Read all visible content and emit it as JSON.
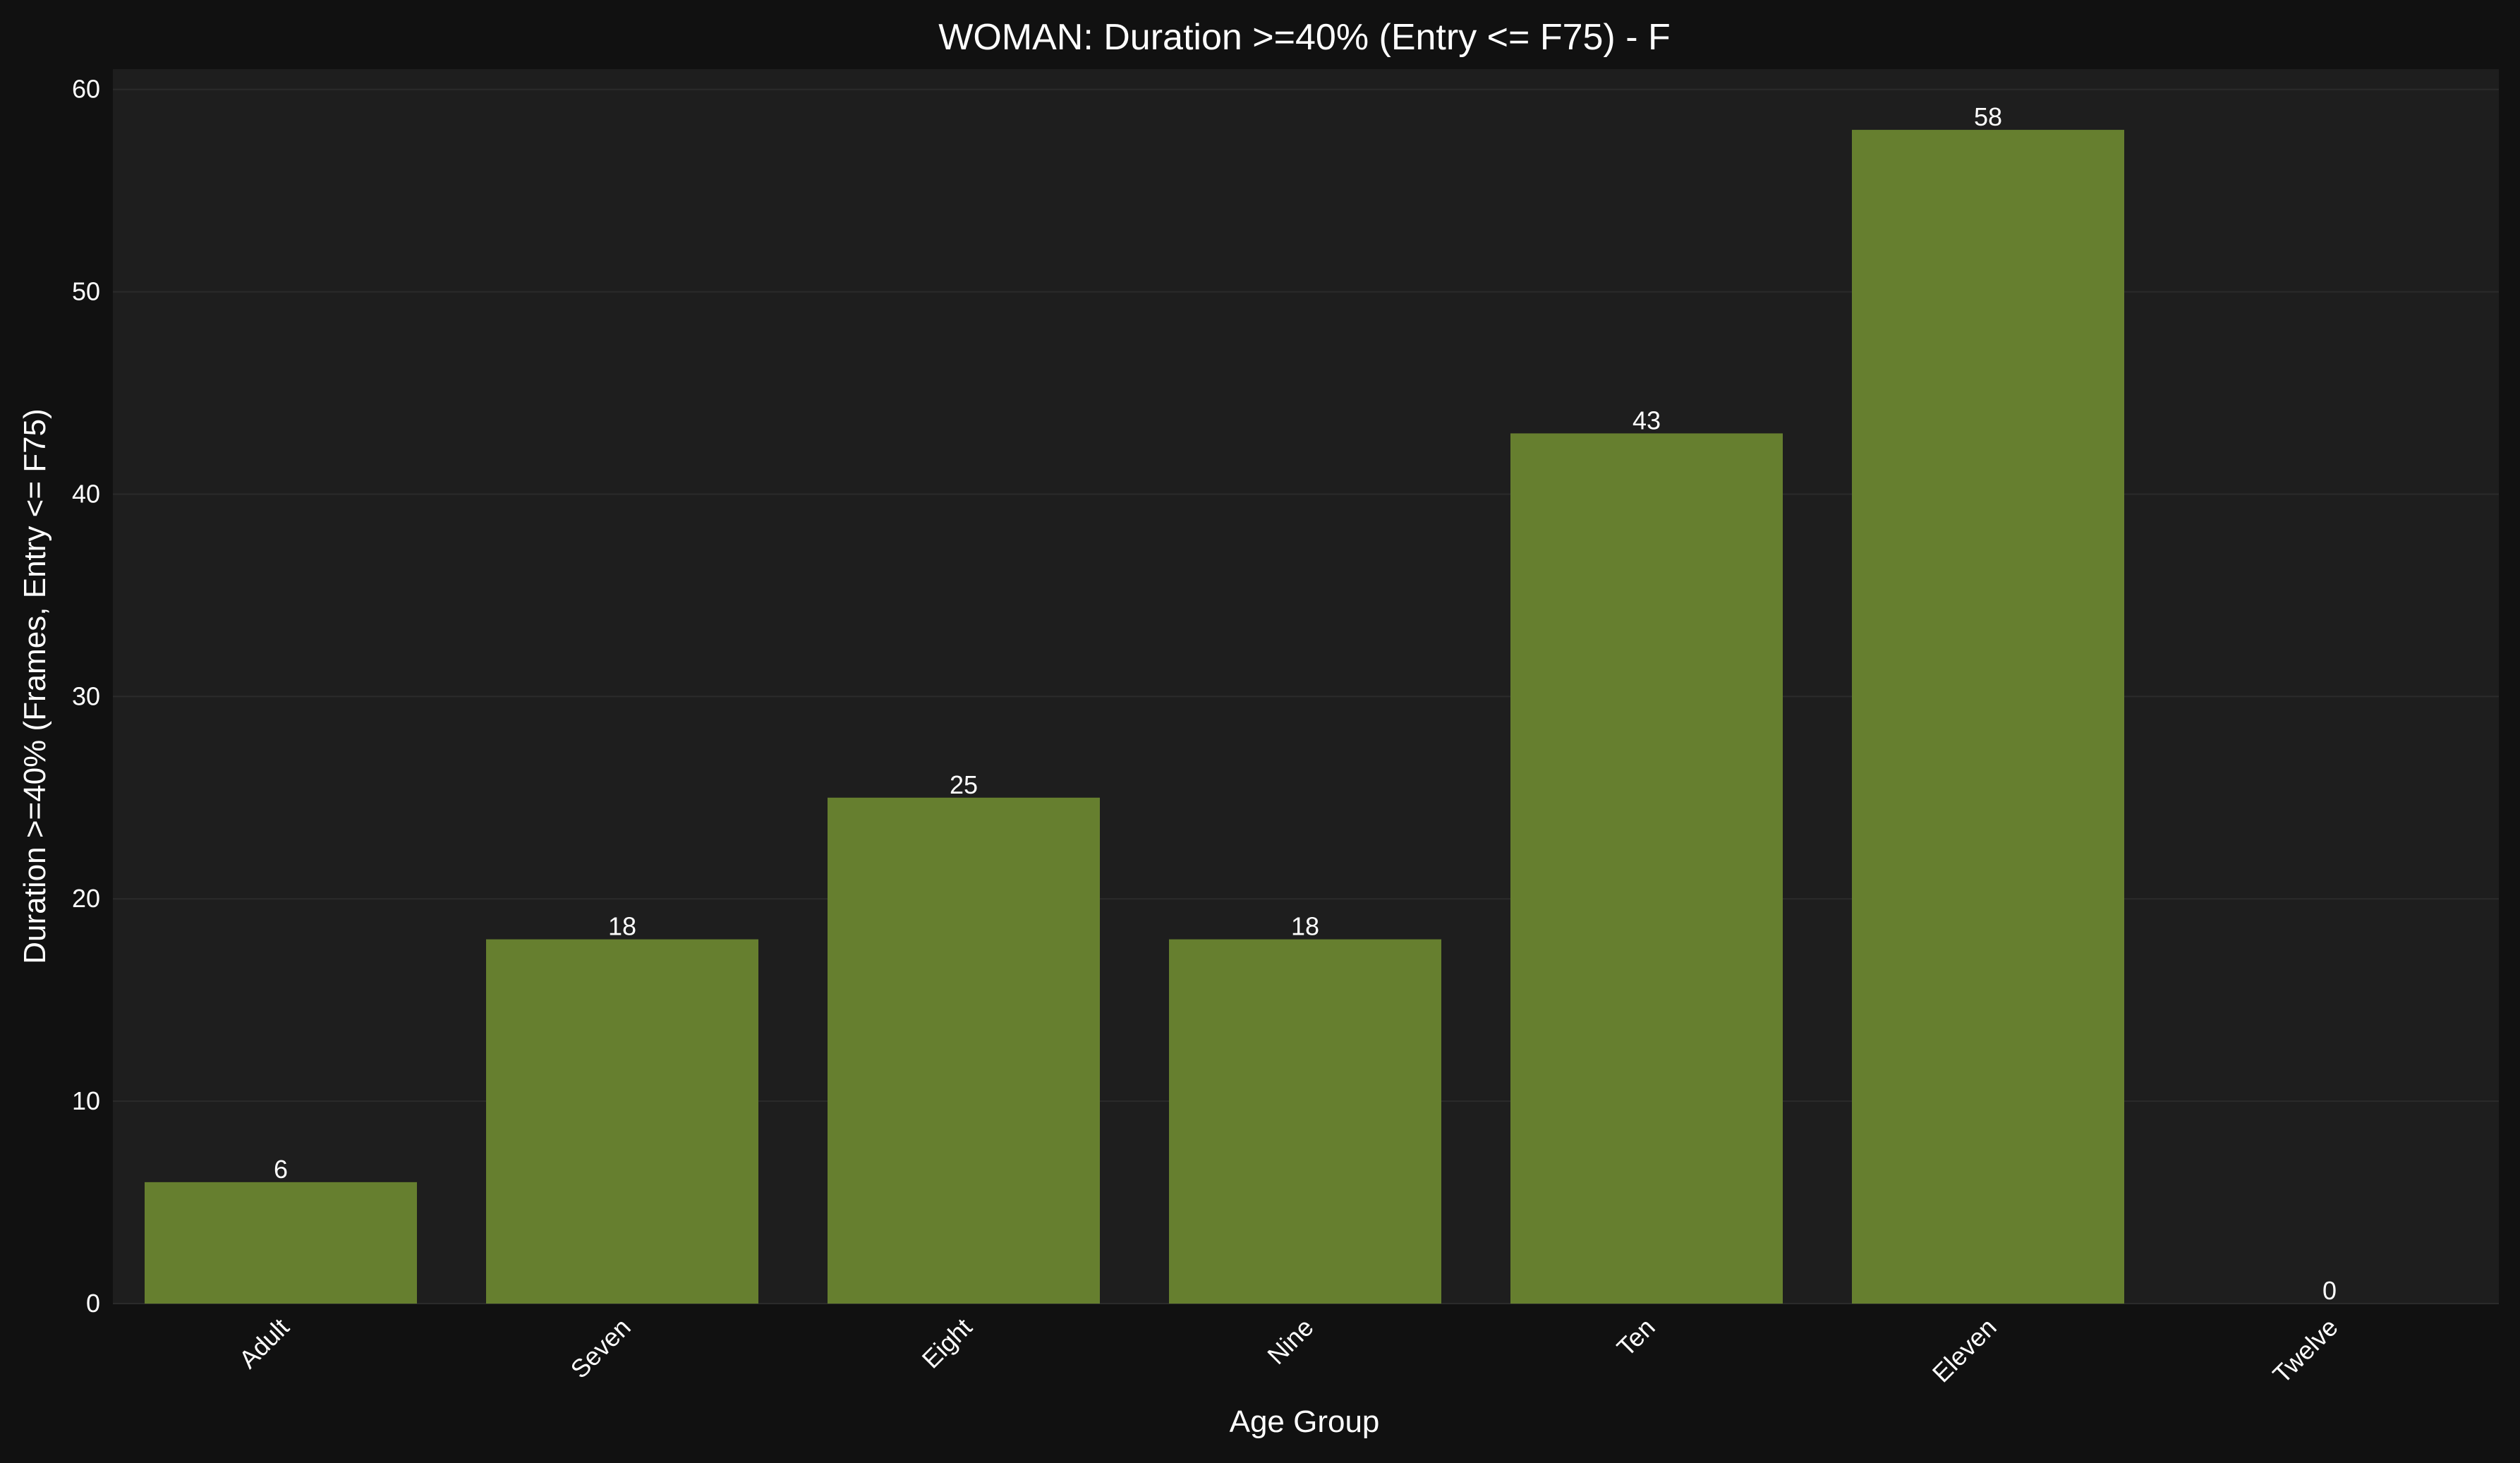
{
  "chart_data": {
    "type": "bar",
    "title": "WOMAN: Duration >=40% (Entry <= F75) - F",
    "xlabel": "Age Group",
    "ylabel": "Duration >=40% (Frames, Entry <= F75)",
    "categories": [
      "Adult",
      "Seven",
      "Eight",
      "Nine",
      "Ten",
      "Eleven",
      "Twelve"
    ],
    "values": [
      6,
      18,
      25,
      18,
      43,
      58,
      0
    ],
    "data_labels": [
      "6",
      "18",
      "25",
      "18",
      "43",
      "58",
      "0"
    ],
    "ylim": [
      0,
      61
    ],
    "yticks": [
      0,
      10,
      20,
      30,
      40,
      50,
      60
    ],
    "ytick_labels": [
      "0",
      "10",
      "20",
      "30",
      "40",
      "50",
      "60"
    ],
    "grid": "y",
    "legend": "none",
    "colors": {
      "figure_background": "#111111",
      "plot_background": "#1e1e1e",
      "bar": "#667f2f",
      "grid": "#2b2b2b",
      "text": "#ffffff"
    }
  }
}
